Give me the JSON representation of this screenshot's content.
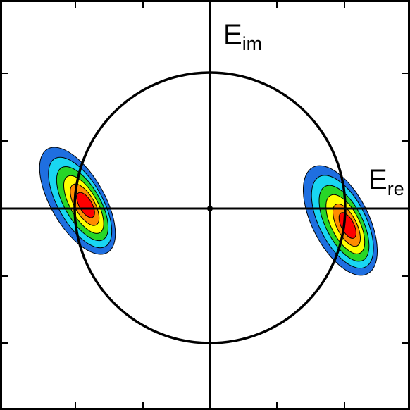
{
  "labels": {
    "imag_axis": {
      "main": "E",
      "sub": "im"
    },
    "real_axis": {
      "main": "E",
      "sub": "re"
    }
  },
  "contour_colors": [
    "#1f6fe0",
    "#19d6f2",
    "#27d627",
    "#ffff00",
    "#ff8c00",
    "#ff0000"
  ],
  "styling": {
    "line_color": "#000000",
    "background": "#ffffff"
  }
}
